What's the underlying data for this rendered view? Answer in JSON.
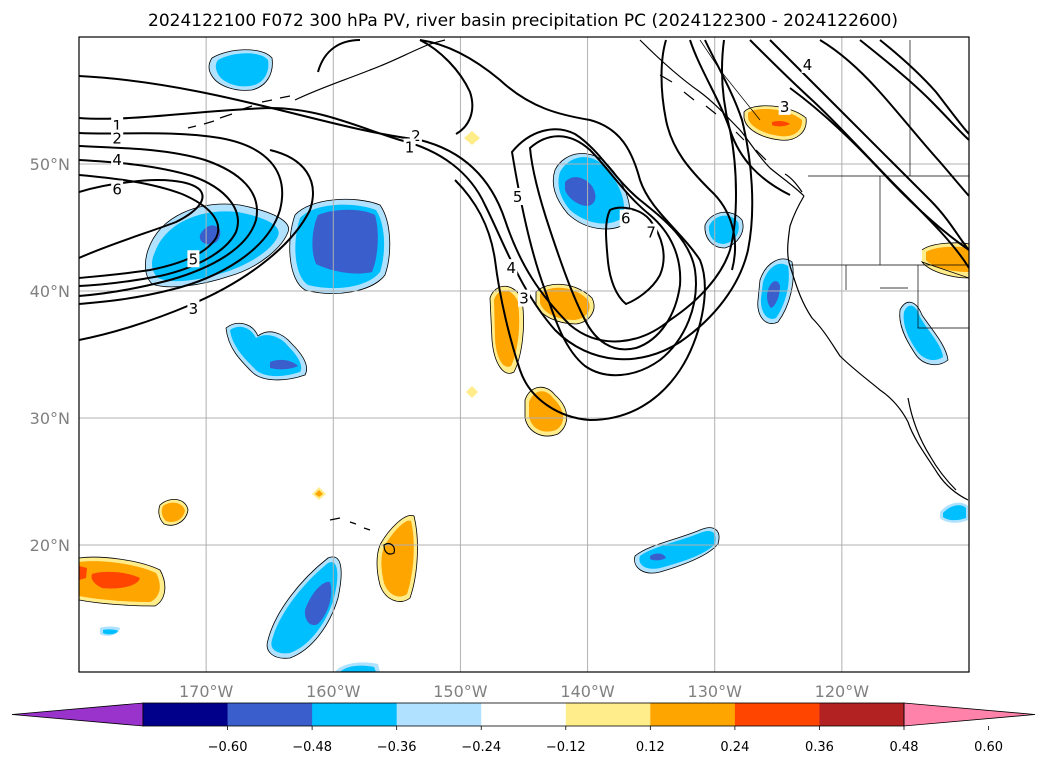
{
  "title": "2024122100 F072 300 hPa PV, river basin precipitation PC (2024122300 - 2024122600)",
  "map": {
    "lon_range": [
      -180,
      -110
    ],
    "lat_range": [
      10,
      60
    ],
    "lon_ticks": [
      {
        "value": -170,
        "label": "170°W"
      },
      {
        "value": -160,
        "label": "160°W"
      },
      {
        "value": -150,
        "label": "150°W"
      },
      {
        "value": -140,
        "label": "140°W"
      },
      {
        "value": -130,
        "label": "130°W"
      },
      {
        "value": -120,
        "label": "120°W"
      }
    ],
    "lat_ticks": [
      {
        "value": 20,
        "label": "20°N"
      },
      {
        "value": 30,
        "label": "30°N"
      },
      {
        "value": 40,
        "label": "40°N"
      },
      {
        "value": 50,
        "label": "50°N"
      }
    ],
    "gridlines": true,
    "projection": "PlateCarree"
  },
  "colorbar": {
    "colors": [
      "#9933cc",
      "#00008b",
      "#3a5fcd",
      "#00bfff",
      "#b0e2ff",
      "#ffffff",
      "#ffec8b",
      "#ffa500",
      "#ff4500",
      "#b22222",
      "#ff82ab"
    ],
    "ticks": [
      "−0.60",
      "−0.48",
      "−0.36",
      "−0.24",
      "−0.12",
      "0.12",
      "0.24",
      "0.36",
      "0.48",
      "0.60"
    ],
    "extend": "both"
  },
  "pv_contour_labels": [
    {
      "text": "1",
      "lon": -177.0,
      "lat": 53.0
    },
    {
      "text": "2",
      "lon": -177.0,
      "lat": 52.0
    },
    {
      "text": "4",
      "lon": -177.0,
      "lat": 50.3
    },
    {
      "text": "6",
      "lon": -177.0,
      "lat": 48.0
    },
    {
      "text": "5",
      "lon": -171.0,
      "lat": 42.5
    },
    {
      "text": "3",
      "lon": -171.0,
      "lat": 38.6
    },
    {
      "text": "2",
      "lon": -153.5,
      "lat": 52.2
    },
    {
      "text": "1",
      "lon": -154.0,
      "lat": 51.3
    },
    {
      "text": "5",
      "lon": -145.5,
      "lat": 47.4
    },
    {
      "text": "4",
      "lon": -146.0,
      "lat": 41.8
    },
    {
      "text": "3",
      "lon": -145.0,
      "lat": 39.4
    },
    {
      "text": "6",
      "lon": -137.0,
      "lat": 45.7
    },
    {
      "text": "7",
      "lon": -135.0,
      "lat": 44.6
    },
    {
      "text": "4",
      "lon": -122.7,
      "lat": 57.8
    },
    {
      "text": "3",
      "lon": -124.5,
      "lat": 54.5
    }
  ]
}
